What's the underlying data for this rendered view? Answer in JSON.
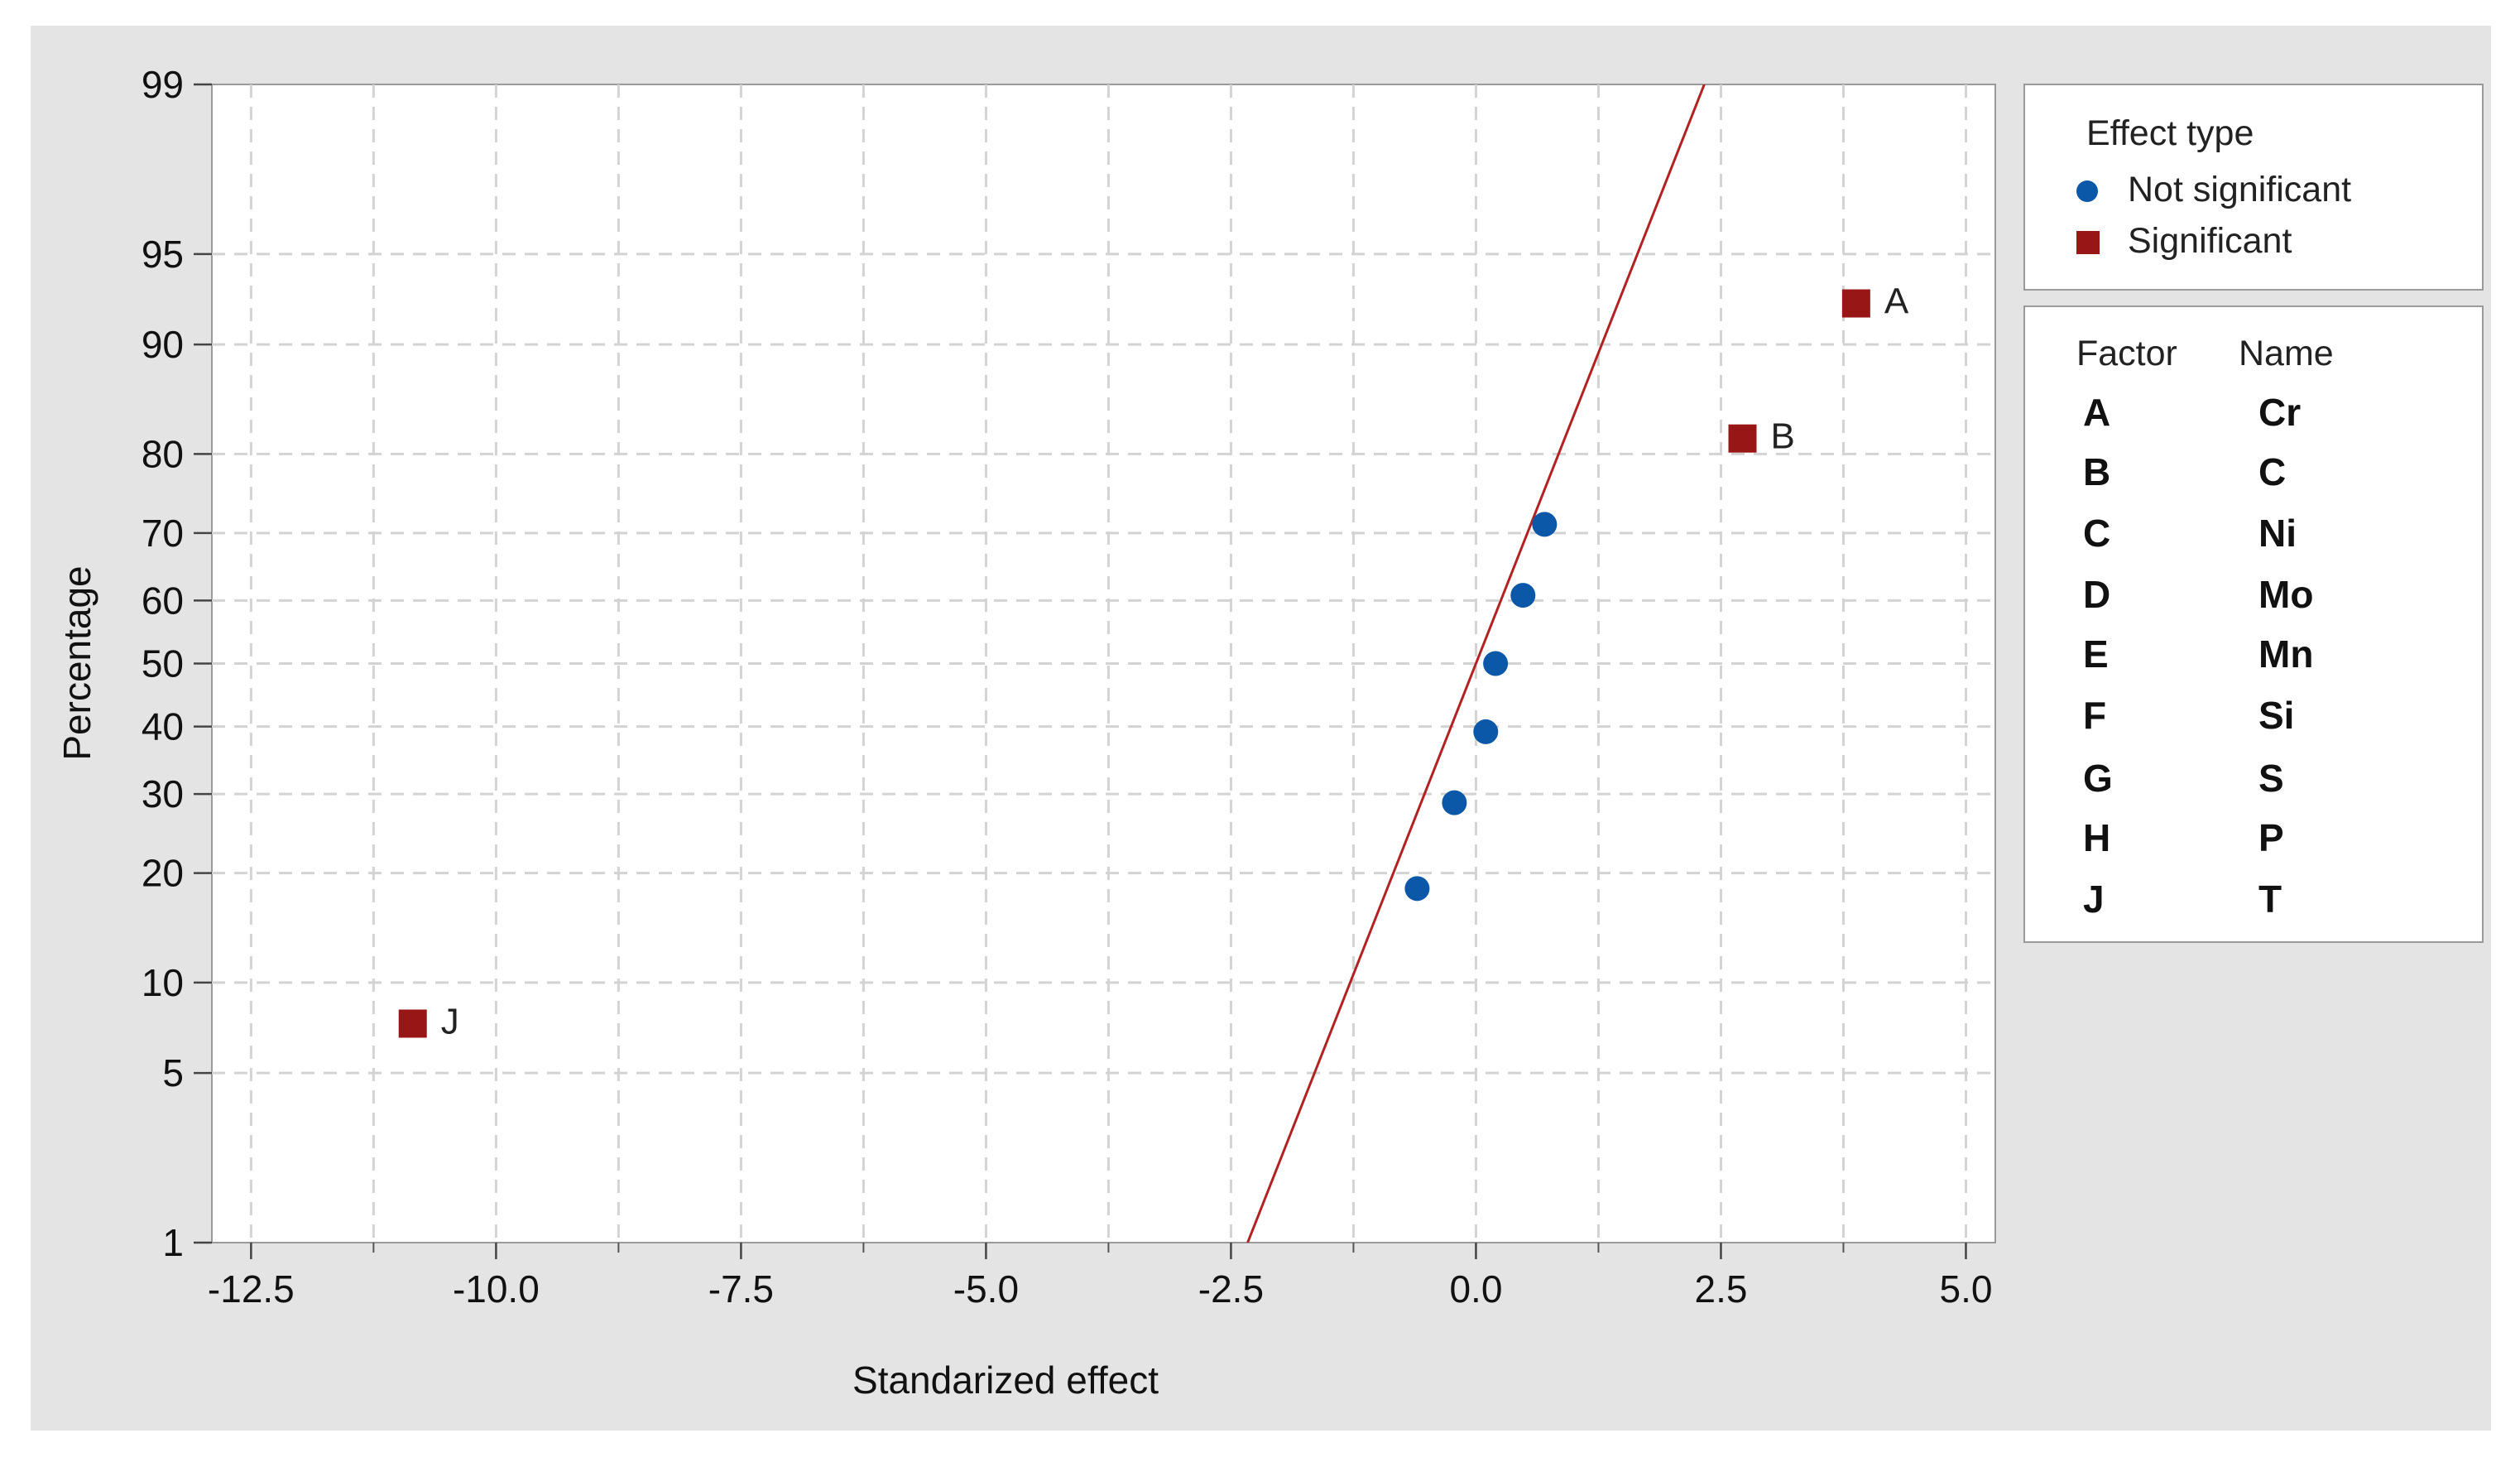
{
  "chart_data": {
    "type": "scatter",
    "xlabel": "Standarized effect",
    "ylabel": "Percentage",
    "xlim": [
      -12.9,
      5.3
    ],
    "x_ticks": [
      -12.5,
      -10.0,
      -7.5,
      -5.0,
      -2.5,
      0.0,
      2.5,
      5.0
    ],
    "x_tick_labels": [
      "-12.5",
      "-10.0",
      "-7.5",
      "-5.0",
      "-2.5",
      "0.0",
      "2.5",
      "5.0"
    ],
    "y_scale": "normal-probability",
    "ylim": [
      1,
      99
    ],
    "y_ticks": [
      1,
      5,
      10,
      20,
      30,
      40,
      50,
      60,
      70,
      80,
      90,
      95,
      99
    ],
    "y_tick_labels": [
      "1",
      "5",
      "10",
      "20",
      "30",
      "40",
      "50",
      "60",
      "70",
      "80",
      "90",
      "95",
      "99"
    ],
    "grid": true,
    "legend_position": "right",
    "reference_line": {
      "color": "#b22222",
      "x_at_p1": -2.33,
      "x_at_p99": 2.33
    },
    "series": [
      {
        "name": "Not significant",
        "marker": "circle",
        "color": "#0b57a8",
        "points": [
          {
            "x": -0.6,
            "y": 18.3
          },
          {
            "x": -0.22,
            "y": 28.8
          },
          {
            "x": 0.1,
            "y": 39.2
          },
          {
            "x": 0.2,
            "y": 50.0
          },
          {
            "x": 0.48,
            "y": 60.8
          },
          {
            "x": 0.7,
            "y": 71.2
          }
        ]
      },
      {
        "name": "Significant",
        "marker": "square",
        "color": "#981616",
        "points": [
          {
            "x": -10.85,
            "y": 7.4,
            "label": "J"
          },
          {
            "x": 2.72,
            "y": 81.7,
            "label": "B"
          },
          {
            "x": 3.88,
            "y": 92.6,
            "label": "A"
          }
        ]
      }
    ]
  },
  "legend": {
    "title": "Effect type",
    "entries": [
      {
        "label": "Not significant",
        "icon": "circle-marker-icon",
        "color": "#0b57a8"
      },
      {
        "label": "Significant",
        "icon": "square-marker-icon",
        "color": "#981616"
      }
    ]
  },
  "factor_table": {
    "headers": [
      "Factor",
      "Name"
    ],
    "rows": [
      [
        "A",
        "Cr"
      ],
      [
        "B",
        "C"
      ],
      [
        "C",
        "Ni"
      ],
      [
        "D",
        "Mo"
      ],
      [
        "E",
        "Mn"
      ],
      [
        "F",
        "Si"
      ],
      [
        "G",
        "S"
      ],
      [
        "H",
        "P"
      ],
      [
        "J",
        "T"
      ]
    ]
  }
}
